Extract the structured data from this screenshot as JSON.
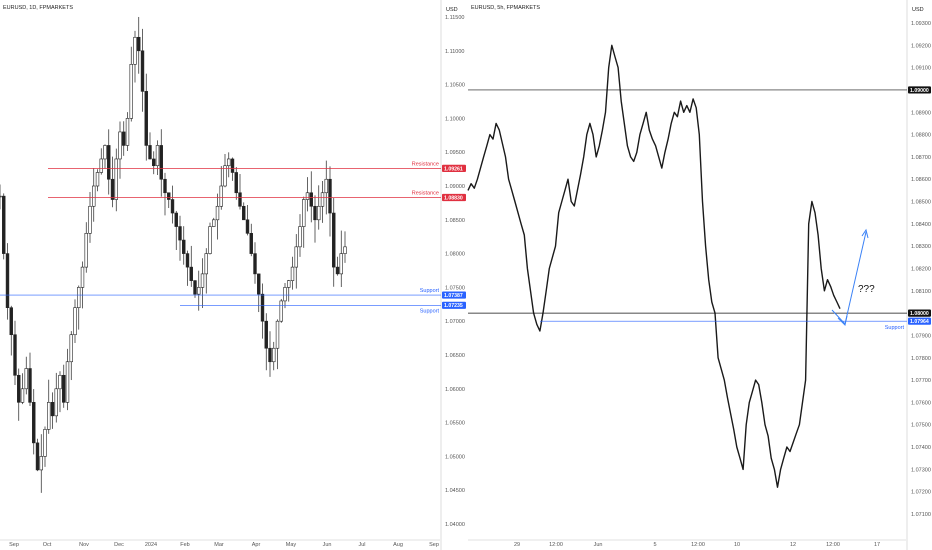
{
  "chart_data": [
    {
      "type": "candlestick",
      "title": "EURUSD, 1D, FPMARKETS",
      "currency": "USD",
      "ylim": [
        1.0375,
        1.1195
      ],
      "y_ticks": [
        "1.11500",
        "1.11000",
        "1.10500",
        "1.10000",
        "1.09500",
        "1.09000",
        "1.08500",
        "1.08000",
        "1.07500",
        "1.07000",
        "1.06500",
        "1.06000",
        "1.05500",
        "1.05000",
        "1.04500",
        "1.04000"
      ],
      "x_labels": [
        "Sep",
        "Oct",
        "Nov",
        "Dec",
        "2024",
        "Feb",
        "Mar",
        "Apr",
        "May",
        "Jun",
        "Jul",
        "Aug",
        "Sep"
      ],
      "levels": [
        {
          "label": "Resistance",
          "value": 1.09261,
          "badge": "1.09261",
          "color": "#e03040"
        },
        {
          "label": "Resistance",
          "value": 1.0883,
          "badge": "1.08830",
          "color": "#e03040"
        },
        {
          "label": "Support",
          "value": 1.07387,
          "badge": "1.07387",
          "color": "#2962ff"
        },
        {
          "label": "Support",
          "value": 1.07235,
          "badge": "1.07235",
          "color": "#2962ff"
        }
      ],
      "path": [
        1.0885,
        1.08,
        1.072,
        1.068,
        1.062,
        1.058,
        1.06,
        1.063,
        1.058,
        1.052,
        1.048,
        1.05,
        1.054,
        1.058,
        1.056,
        1.06,
        1.062,
        1.058,
        1.064,
        1.068,
        1.072,
        1.075,
        1.078,
        1.083,
        1.087,
        1.09,
        1.092,
        1.094,
        1.096,
        1.091,
        1.088,
        1.094,
        1.098,
        1.096,
        1.1,
        1.108,
        1.112,
        1.11,
        1.104,
        1.096,
        1.094,
        1.093,
        1.096,
        1.091,
        1.089,
        1.088,
        1.086,
        1.084,
        1.082,
        1.08,
        1.078,
        1.076,
        1.074,
        1.075,
        1.077,
        1.08,
        1.084,
        1.085,
        1.087,
        1.09,
        1.093,
        1.094,
        1.092,
        1.089,
        1.087,
        1.085,
        1.083,
        1.08,
        1.077,
        1.074,
        1.07,
        1.066,
        1.064,
        1.066,
        1.07,
        1.073,
        1.075,
        1.076,
        1.078,
        1.081,
        1.084,
        1.088,
        1.089,
        1.087,
        1.085,
        1.087,
        1.089,
        1.091,
        1.086,
        1.078,
        1.077,
        1.08,
        1.081
      ]
    },
    {
      "type": "line",
      "title": "EURUSD, 5h, FPMARKETS",
      "currency": "USD",
      "ylim": [
        1.0702,
        1.0936
      ],
      "y_ticks": [
        "1.09300",
        "1.09200",
        "1.09100",
        "1.09000",
        "1.08900",
        "1.08800",
        "1.08700",
        "1.08600",
        "1.08500",
        "1.08400",
        "1.08300",
        "1.08200",
        "1.08100",
        "1.08000",
        "1.07900",
        "1.07800",
        "1.07700",
        "1.07600",
        "1.07500",
        "1.07400",
        "1.07300",
        "1.07200",
        "1.07100"
      ],
      "x_labels": [
        "29",
        "12:00",
        "Jun",
        "5",
        "12:00",
        "10",
        "12",
        "12:00",
        "17"
      ],
      "levels": [
        {
          "label": "",
          "value": 1.09,
          "badge": "1.09000",
          "color": "#111111"
        },
        {
          "label": "",
          "value": 1.08,
          "badge": "1.08000",
          "color": "#111111"
        },
        {
          "label": "Support",
          "value": 1.07964,
          "badge": "1.07964",
          "color": "#2962ff"
        }
      ],
      "annotation": "???",
      "path": [
        1.0855,
        1.0858,
        1.0856,
        1.086,
        1.0865,
        1.087,
        1.0875,
        1.088,
        1.0878,
        1.0885,
        1.0882,
        1.0876,
        1.087,
        1.086,
        1.0855,
        1.085,
        1.0845,
        1.084,
        1.0835,
        1.082,
        1.081,
        1.08,
        1.0795,
        1.0792,
        1.08,
        1.081,
        1.082,
        1.0825,
        1.083,
        1.0845,
        1.085,
        1.0855,
        1.086,
        1.085,
        1.0848,
        1.0855,
        1.0862,
        1.087,
        1.088,
        1.0885,
        1.088,
        1.087,
        1.0875,
        1.0882,
        1.089,
        1.091,
        1.092,
        1.0915,
        1.091,
        1.0895,
        1.0885,
        1.0875,
        1.087,
        1.0868,
        1.0872,
        1.088,
        1.0885,
        1.089,
        1.0882,
        1.0878,
        1.0875,
        1.087,
        1.0865,
        1.0872,
        1.0878,
        1.0885,
        1.089,
        1.0888,
        1.0895,
        1.089,
        1.0893,
        1.089,
        1.0896,
        1.0892,
        1.088,
        1.085,
        1.083,
        1.0815,
        1.0805,
        1.08,
        1.078,
        1.0775,
        1.077,
        1.0762,
        1.0755,
        1.0748,
        1.074,
        1.0735,
        1.073,
        1.075,
        1.076,
        1.0765,
        1.077,
        1.0768,
        1.076,
        1.075,
        1.0745,
        1.0735,
        1.073,
        1.0722,
        1.073,
        1.0735,
        1.074,
        1.0738,
        1.0742,
        1.0746,
        1.075,
        1.076,
        1.077,
        1.084,
        1.085,
        1.0845,
        1.0835,
        1.082,
        1.081,
        1.0815,
        1.0812,
        1.0808,
        1.0805,
        1.0802
      ]
    }
  ]
}
